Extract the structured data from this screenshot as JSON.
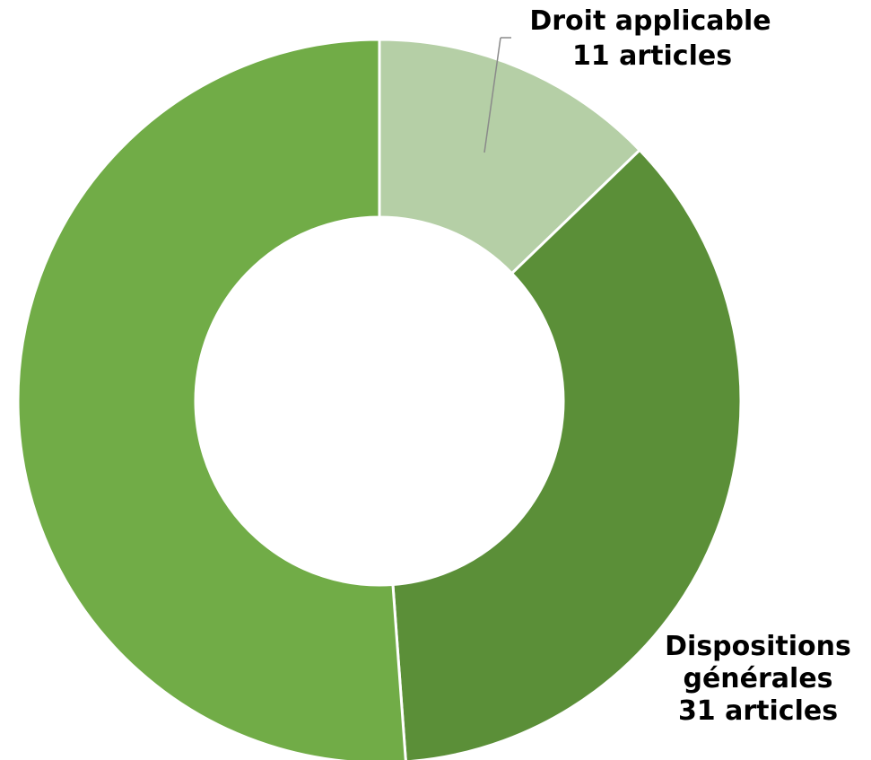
{
  "chart_data": {
    "type": "pie",
    "variant": "donut",
    "title": "",
    "legend": "none",
    "slices": [
      {
        "category": "Droit applicable",
        "value": 11,
        "value_label": "11 articles",
        "color": "#B5CFA6"
      },
      {
        "category": "Dispositions générales",
        "category_lines": [
          "Dispositions",
          "générales"
        ],
        "value": 31,
        "value_label": "31 articles",
        "color": "#5B8F38"
      },
      {
        "category": "",
        "value": 44,
        "value_label": "",
        "color": "#71AC47"
      }
    ]
  }
}
